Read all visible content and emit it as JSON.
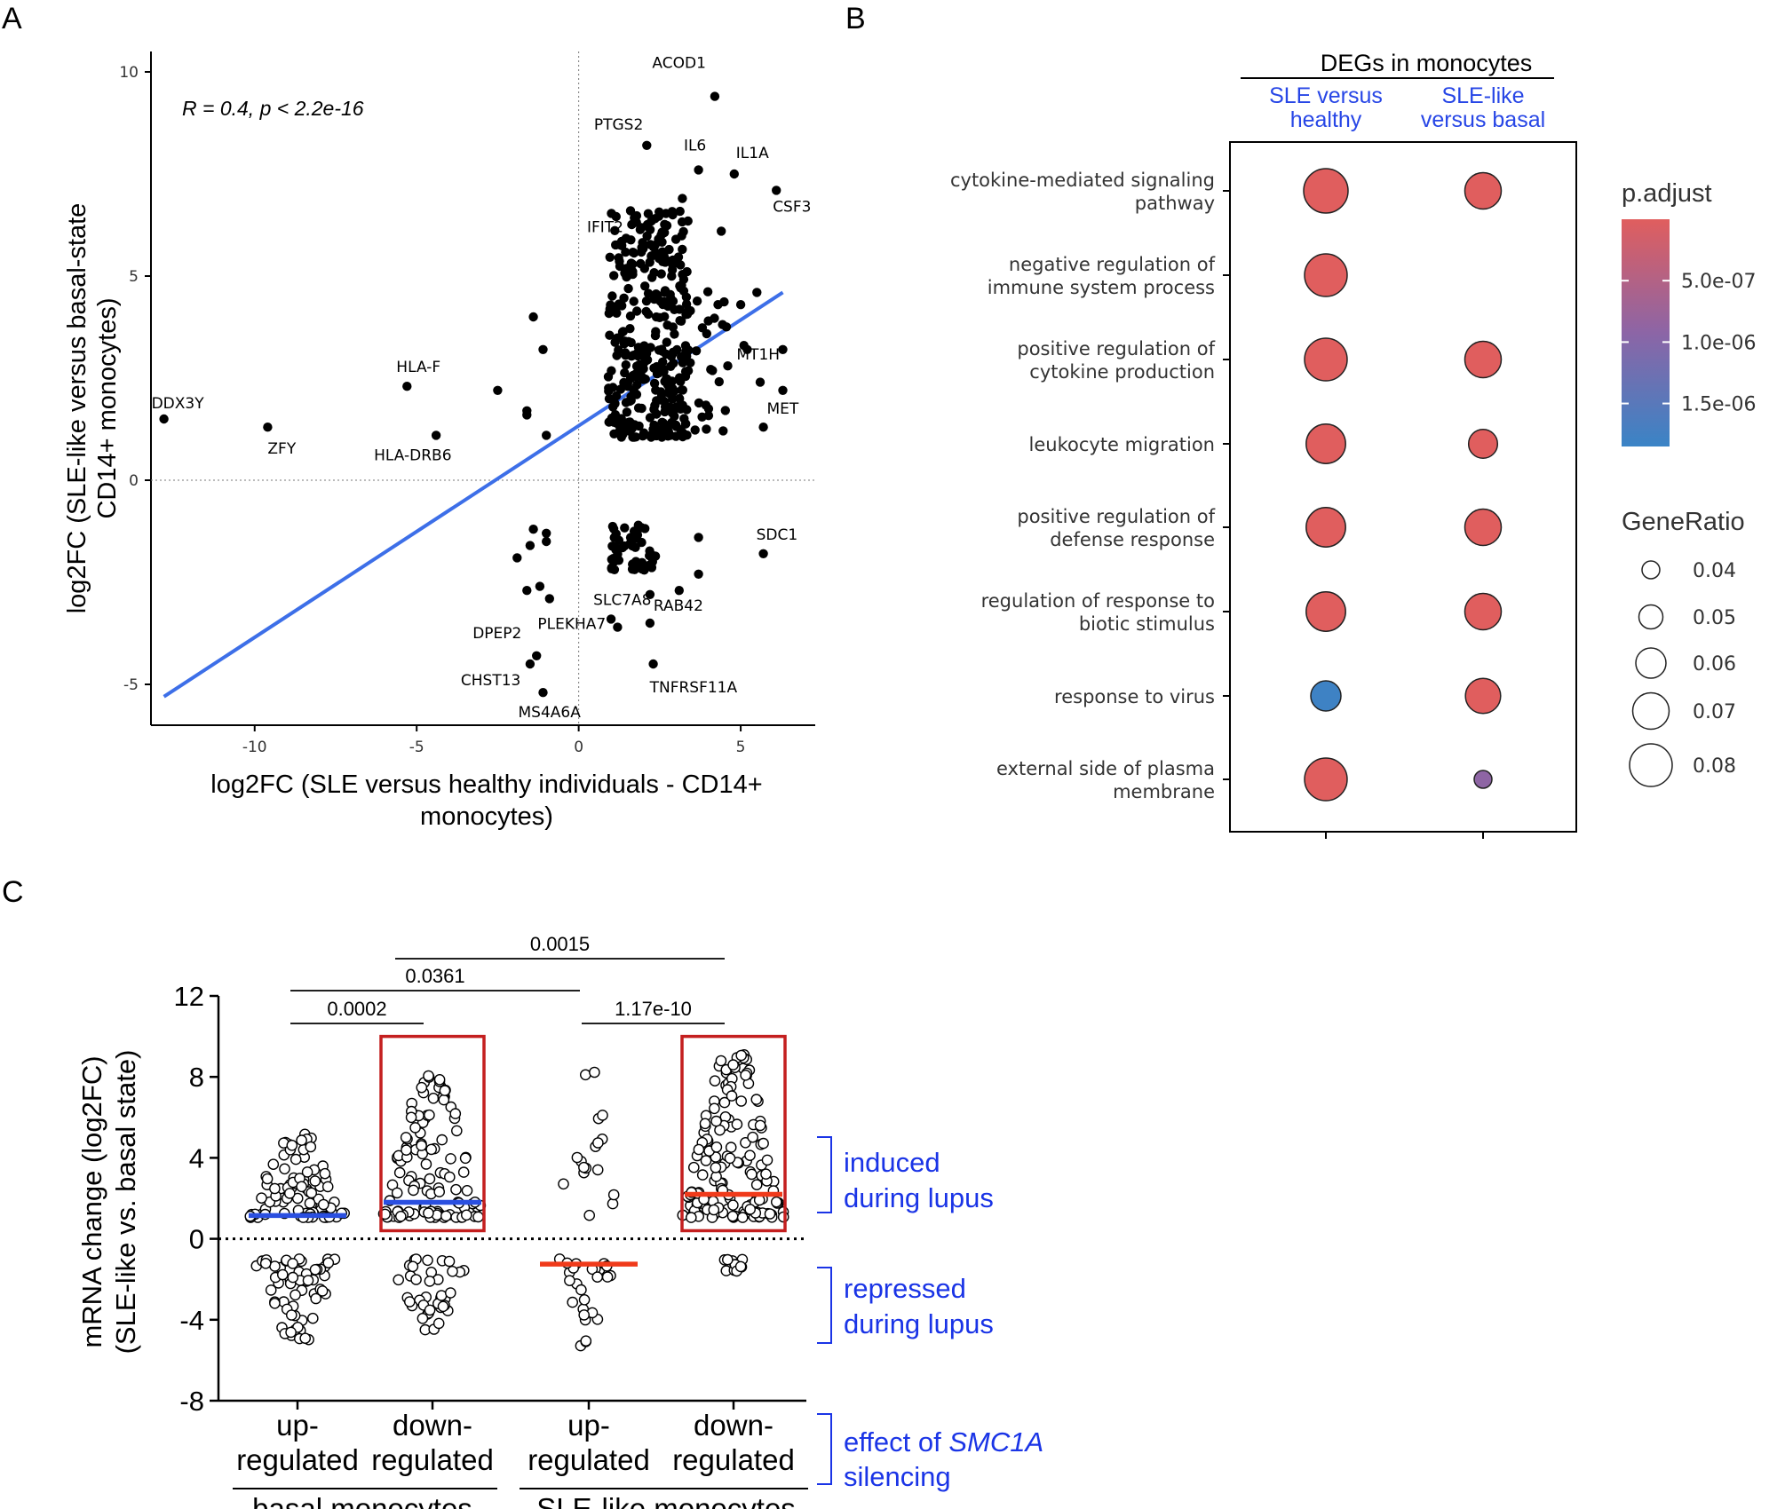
{
  "chart_data": [
    {
      "panel": "A",
      "type": "scatter",
      "xlabel_line1": "log2FC (SLE versus healthy individuals - CD14+",
      "xlabel_line2": "monocytes)",
      "ylabel_line1": "log2FC (SLE-like versus basal-state",
      "ylabel_line2": "CD14+ monocytes)",
      "xlim": [
        -13.2,
        7.3
      ],
      "ylim": [
        -6.0,
        10.5
      ],
      "xticks": [
        -10,
        -5,
        0,
        5
      ],
      "yticks": [
        -5,
        0,
        5,
        10
      ],
      "annotation": "R = 0.4, p < 2.2e-16",
      "regression": {
        "x1": -12.8,
        "y1": -5.3,
        "x2": 6.3,
        "y2": 4.6,
        "color": "#3d6fe8"
      },
      "labeled_points": [
        {
          "gene": "ACOD1",
          "x": 4.2,
          "y": 9.4
        },
        {
          "gene": "PTGS2",
          "x": 2.1,
          "y": 8.2
        },
        {
          "gene": "IL6",
          "x": 3.7,
          "y": 7.6
        },
        {
          "gene": "IL1A",
          "x": 4.8,
          "y": 7.5
        },
        {
          "gene": "IFIT2",
          "x": 1.6,
          "y": 6.6
        },
        {
          "gene": "CSF3",
          "x": 6.1,
          "y": 7.1
        },
        {
          "gene": "MT1H",
          "x": 5.2,
          "y": 3.2
        },
        {
          "gene": "MET",
          "x": 6.3,
          "y": 2.2
        },
        {
          "gene": "HLA-F",
          "x": -5.3,
          "y": 2.3
        },
        {
          "gene": "DDX3Y",
          "x": -12.8,
          "y": 1.5
        },
        {
          "gene": "ZFY",
          "x": -9.6,
          "y": 1.3
        },
        {
          "gene": "HLA-DRB6",
          "x": -4.4,
          "y": 1.1
        },
        {
          "gene": "SDC1",
          "x": 5.7,
          "y": -1.8
        },
        {
          "gene": "SLC7A8",
          "x": 1.0,
          "y": -3.4
        },
        {
          "gene": "DPEP2",
          "x": -1.3,
          "y": -4.3
        },
        {
          "gene": "PLEKHA7",
          "x": 1.2,
          "y": -3.6
        },
        {
          "gene": "RAB42",
          "x": 2.2,
          "y": -3.5
        },
        {
          "gene": "CHST13",
          "x": -1.5,
          "y": -4.5
        },
        {
          "gene": "TNFRSF11A",
          "x": 2.3,
          "y": -4.5
        },
        {
          "gene": "MS4A6A",
          "x": -1.1,
          "y": -5.2
        }
      ],
      "extra_points": [
        [
          -1.4,
          4.0
        ],
        [
          -1.1,
          3.2
        ],
        [
          -1.6,
          1.7
        ],
        [
          -2.5,
          2.2
        ],
        [
          -1.0,
          1.1
        ],
        [
          -1.6,
          1.6
        ],
        [
          -1.4,
          -1.2
        ],
        [
          -1.0,
          -1.5
        ],
        [
          -1.9,
          -1.9
        ],
        [
          -1.6,
          -2.7
        ],
        [
          -0.9,
          -2.9
        ],
        [
          -1.2,
          -2.6
        ],
        [
          -1.0,
          -1.3
        ],
        [
          -1.5,
          -1.6
        ],
        [
          3.7,
          -1.4
        ],
        [
          3.7,
          -2.3
        ],
        [
          2.2,
          -2.8
        ],
        [
          3.1,
          -2.7
        ],
        [
          4.0,
          3.9
        ],
        [
          5.1,
          3.3
        ],
        [
          4.6,
          2.8
        ],
        [
          5.6,
          2.4
        ],
        [
          5.7,
          1.3
        ],
        [
          4.3,
          4.3
        ],
        [
          5.5,
          4.6
        ],
        [
          5.0,
          4.3
        ],
        [
          6.3,
          3.2
        ],
        [
          3.2,
          6.9
        ],
        [
          4.4,
          6.1
        ],
        [
          2.9,
          6.5
        ],
        [
          3.0,
          5.9
        ]
      ],
      "cluster_ranges": [
        {
          "xmin": 0.9,
          "xmax": 3.4,
          "ymin": 1.05,
          "ymax": 6.6,
          "n": 340
        },
        {
          "xmin": 3.3,
          "xmax": 4.6,
          "ymin": 1.2,
          "ymax": 5.2,
          "n": 25
        },
        {
          "xmin": 1.0,
          "xmax": 2.4,
          "ymin": -2.2,
          "ymax": -1.0,
          "n": 48
        }
      ]
    },
    {
      "panel": "B",
      "type": "dot",
      "group_title": "DEGs in monocytes",
      "columns": [
        {
          "line1": "SLE versus",
          "line2": "healthy"
        },
        {
          "line1": "SLE-like",
          "line2": "versus basal"
        }
      ],
      "terms": [
        {
          "line1": "cytokine-mediated signaling",
          "line2": "pathway"
        },
        {
          "line1": "negative regulation of",
          "line2": "immune system process"
        },
        {
          "line1": "positive regulation of",
          "line2": "cytokine production"
        },
        {
          "line1": "leukocyte migration",
          "line2": ""
        },
        {
          "line1": "positive regulation of",
          "line2": "defense response"
        },
        {
          "line1": "regulation of response to",
          "line2": "biotic stimulus"
        },
        {
          "line1": "response to virus",
          "line2": ""
        },
        {
          "line1": "external side of plasma",
          "line2": "membrane"
        }
      ],
      "gene_ratio": [
        [
          0.083,
          0.07
        ],
        [
          0.08,
          null
        ],
        [
          0.08,
          0.07
        ],
        [
          0.075,
          0.058
        ],
        [
          0.075,
          0.07
        ],
        [
          0.075,
          0.07
        ],
        [
          0.06,
          0.068
        ],
        [
          0.08,
          0.04
        ]
      ],
      "p_adjust": [
        [
          1e-09,
          1e-09
        ],
        [
          1e-09,
          null
        ],
        [
          1e-09,
          1e-09
        ],
        [
          1e-09,
          1e-09
        ],
        [
          1e-09,
          1e-09
        ],
        [
          1e-09,
          1e-09
        ],
        [
          1.8e-06,
          1e-09
        ],
        [
          1e-09,
          9e-07
        ]
      ],
      "legend_padjust": {
        "title": "p.adjust",
        "ticks": [
          "5.0e-07",
          "1.0e-06",
          "1.5e-06"
        ],
        "tick_values": [
          5e-07,
          1e-06,
          1.5e-06
        ],
        "range": [
          0,
          1.85e-06
        ],
        "color_low": "#e05e5e",
        "color_mid": "#8c65a6",
        "color_high": "#3a84c6"
      },
      "legend_generatio": {
        "title": "GeneRatio",
        "values": [
          0.04,
          0.05,
          0.06,
          0.07,
          0.08
        ],
        "labels": [
          "0.04",
          "0.05",
          "0.06",
          "0.07",
          "0.08"
        ]
      }
    },
    {
      "panel": "C",
      "type": "scatter",
      "ylabel_line1": "mRNA change (log2FC)",
      "ylabel_line2": "(SLE-like vs. basal state)",
      "ylim": [
        -8,
        12
      ],
      "yticks": [
        -8,
        -4,
        0,
        4,
        8,
        12
      ],
      "ytick_labels": [
        "-8",
        "-4",
        "0",
        "4",
        "8",
        "12"
      ],
      "groups": [
        {
          "line1": "up-",
          "line2": "regulated",
          "median": 1.15,
          "median_color": "#2a4fe0",
          "up_n": 88,
          "up_max": 5.2,
          "down_n": 62,
          "down_min": -5.2,
          "highlight": false
        },
        {
          "line1": "down-",
          "line2": "regulated",
          "median": 1.8,
          "median_color": "#2a4fe0",
          "up_n": 115,
          "up_max": 8.2,
          "down_n": 38,
          "down_min": -4.5,
          "highlight": true
        },
        {
          "line1": "up-",
          "line2": "regulated",
          "median": -1.25,
          "median_color": "#f03a1a",
          "up_n": 17,
          "up_max": 8.3,
          "down_n": 26,
          "down_min": -5.4,
          "highlight": false
        },
        {
          "line1": "down-",
          "line2": "regulated",
          "median": 2.2,
          "median_color": "#f03a1a",
          "up_n": 150,
          "up_max": 9.4,
          "down_n": 12,
          "down_min": -1.8,
          "highlight": true
        }
      ],
      "group_titles": [
        "basal monocytes",
        "SLE-like monocytes"
      ],
      "comparisons": [
        {
          "label": "0.0015",
          "from": 1,
          "to": 3,
          "level": 3
        },
        {
          "label": "0.0361",
          "from": 0,
          "to": 2,
          "level": 2
        },
        {
          "label": "0.0002",
          "from": 0,
          "to": 1,
          "level": 1
        },
        {
          "label": "1.17e-10",
          "from": 2,
          "to": 3,
          "level": 1
        }
      ],
      "annotations": {
        "induced_line1": "induced",
        "induced_line2": "during lupus",
        "repressed_line1": "repressed",
        "repressed_line2": "during lupus",
        "effect_prefix": "effect of ",
        "effect_gene": "SMC1A",
        "effect_line2": "silencing",
        "color": "#1a34e6"
      }
    }
  ],
  "panel_labels": {
    "a": "A",
    "b": "B",
    "c": "C"
  },
  "colors": {
    "highlight_box": "#c41f1f",
    "points": "#000000"
  }
}
